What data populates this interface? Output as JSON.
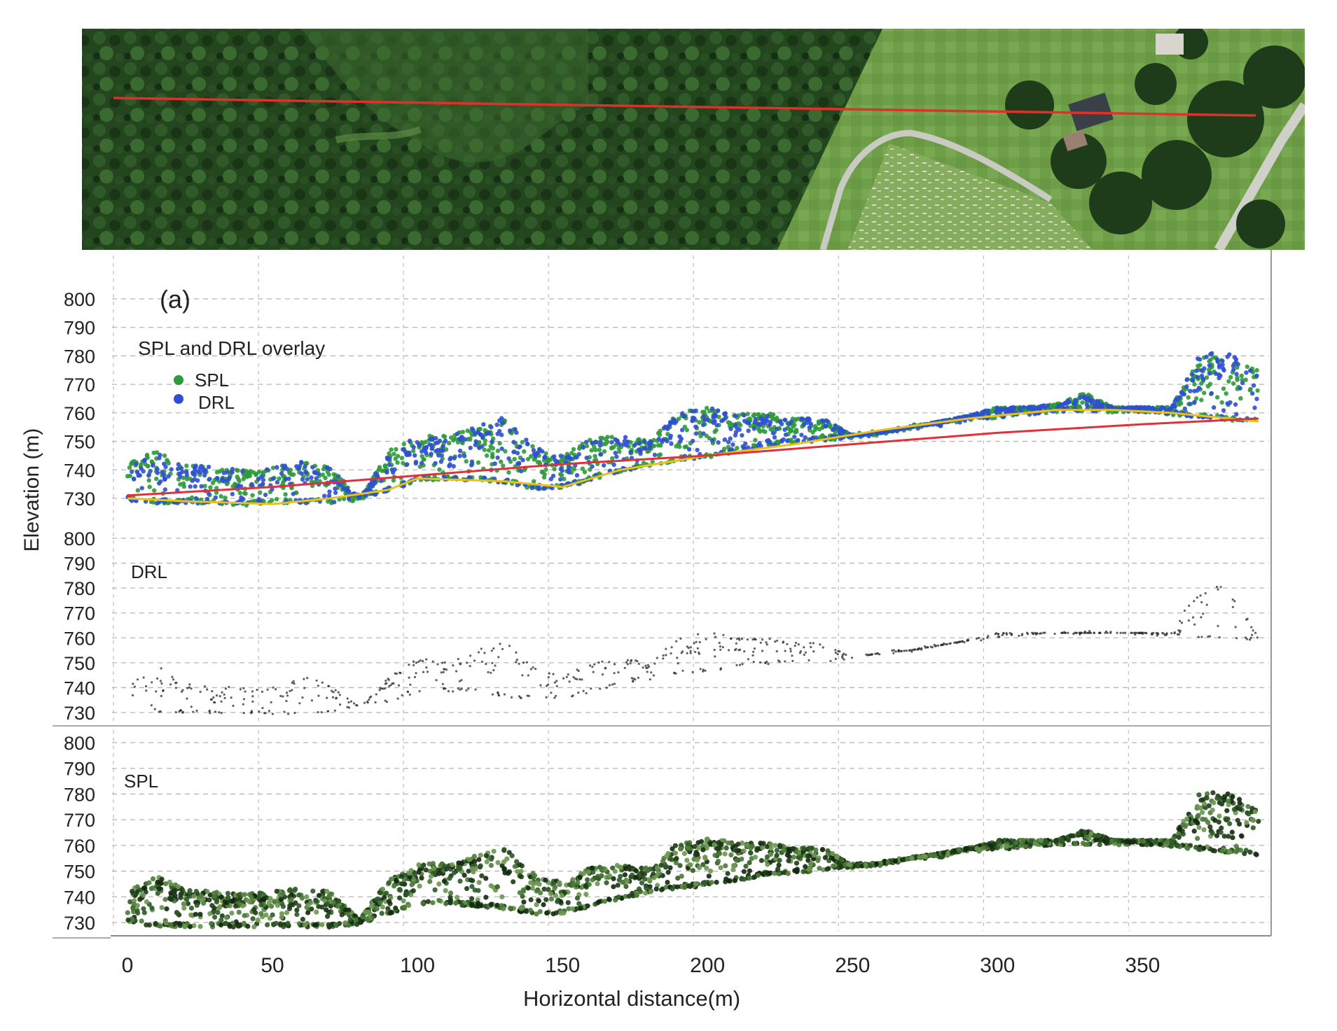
{
  "chart_data": [
    {
      "type": "scatter",
      "panel_letter": "(a)",
      "panel_title": "SPL and DRL overlay",
      "ylabel": "Elevation (m)",
      "xlim": [
        0,
        390
      ],
      "ylim": [
        725,
        805
      ],
      "y_ticks": [
        800,
        790,
        780,
        770,
        760,
        750,
        740,
        730
      ],
      "grid": true,
      "legend": {
        "position": "top-left",
        "entries": [
          {
            "name": "SPL",
            "color": "#2e9a3a"
          },
          {
            "name": "DRL",
            "color": "#2f4fd0"
          }
        ]
      },
      "series": [
        {
          "name": "SPL",
          "color": "#2e9a3a",
          "x": [
            0,
            10,
            20,
            30,
            40,
            50,
            60,
            70,
            80,
            90,
            100,
            110,
            120,
            130,
            140,
            150,
            160,
            170,
            180,
            190,
            200,
            210,
            220,
            230,
            240,
            250,
            260,
            270,
            280,
            290,
            300,
            310,
            320,
            330,
            340,
            350,
            360,
            370,
            380,
            390
          ],
          "canopy_top": [
            742,
            747,
            742,
            741,
            740,
            741,
            743,
            741,
            729,
            747,
            752,
            752,
            755,
            758,
            748,
            745,
            751,
            752,
            750,
            760,
            762,
            760,
            760,
            758,
            758,
            752,
            753,
            755,
            757,
            759,
            762,
            762,
            763,
            767,
            762,
            762,
            762,
            780,
            780,
            775
          ],
          "ground": [
            730,
            729,
            729,
            729,
            728,
            729,
            729,
            729,
            730,
            733,
            737,
            737,
            737,
            736,
            734,
            734,
            737,
            740,
            742,
            744,
            745,
            747,
            749,
            750,
            751,
            752,
            753,
            755,
            756,
            758,
            759,
            760,
            761,
            761,
            761,
            761,
            760,
            759,
            758,
            757
          ]
        },
        {
          "name": "DRL",
          "color": "#2f4fd0",
          "x": [
            0,
            10,
            20,
            30,
            40,
            50,
            60,
            70,
            80,
            90,
            100,
            110,
            120,
            130,
            140,
            150,
            160,
            170,
            180,
            190,
            200,
            210,
            220,
            230,
            240,
            250,
            260,
            270,
            280,
            290,
            300,
            310,
            320,
            330,
            340,
            350,
            360,
            370,
            380,
            390
          ],
          "canopy_top": [
            741,
            746,
            742,
            741,
            740,
            741,
            743,
            741,
            730,
            746,
            752,
            752,
            755,
            759,
            748,
            745,
            751,
            752,
            750,
            760,
            762,
            760,
            760,
            758,
            758,
            752,
            753,
            755,
            757,
            759,
            762,
            762,
            763,
            766,
            762,
            762,
            762,
            781,
            781,
            774
          ],
          "ground": [
            730,
            729,
            729,
            729,
            729,
            729,
            729,
            729,
            731,
            733,
            737,
            737,
            737,
            736,
            734,
            734,
            737,
            740,
            742,
            744,
            745,
            747,
            749,
            750,
            751,
            752,
            753,
            755,
            756,
            758,
            759,
            760,
            761,
            761,
            761,
            761,
            760,
            759,
            758,
            757
          ]
        },
        {
          "name": "terrain line (yellow)",
          "color": "#e8c020",
          "x": [
            0,
            20,
            50,
            70,
            90,
            100,
            130,
            150,
            170,
            200,
            230,
            260,
            290,
            320,
            340,
            360,
            390
          ],
          "y": [
            730,
            729,
            728,
            730,
            733,
            737,
            736,
            734,
            740,
            745,
            749,
            754,
            758,
            761,
            761,
            760,
            757
          ]
        },
        {
          "name": "terrain line (red)",
          "color": "#e0303a",
          "x": [
            0,
            50,
            100,
            150,
            200,
            250,
            300,
            350,
            390
          ],
          "y": [
            731,
            734,
            738,
            742,
            745,
            749,
            753,
            756,
            758
          ]
        }
      ]
    },
    {
      "type": "scatter",
      "panel_title": "DRL",
      "ylabel": "Elevation (m)",
      "xlim": [
        0,
        390
      ],
      "ylim": [
        725,
        805
      ],
      "y_ticks": [
        800,
        790,
        780,
        770,
        760,
        750,
        740,
        730
      ],
      "grid": true,
      "series": [
        {
          "name": "DRL",
          "color": "#2b2b2b",
          "x": [
            0,
            10,
            20,
            30,
            40,
            50,
            60,
            70,
            80,
            90,
            100,
            110,
            120,
            130,
            140,
            150,
            160,
            170,
            180,
            190,
            200,
            210,
            220,
            230,
            240,
            250,
            260,
            270,
            280,
            290,
            300,
            310,
            320,
            330,
            340,
            350,
            360,
            370,
            380,
            390
          ],
          "canopy_top": [
            741,
            749,
            742,
            741,
            740,
            741,
            745,
            741,
            732,
            744,
            752,
            750,
            755,
            759,
            748,
            745,
            750,
            752,
            750,
            760,
            763,
            760,
            760,
            758,
            758,
            752,
            753,
            755,
            757,
            759,
            762,
            762,
            762,
            762,
            762,
            762,
            762,
            782,
            780,
            760
          ],
          "ground": [
            738,
            731,
            730,
            730,
            730,
            730,
            730,
            731,
            733,
            735,
            739,
            739,
            739,
            737,
            736,
            736,
            739,
            742,
            744,
            746,
            747,
            749,
            750,
            751,
            751,
            752,
            754,
            755,
            757,
            759,
            760,
            761,
            762,
            762,
            762,
            762,
            761,
            761,
            760,
            760
          ]
        }
      ]
    },
    {
      "type": "scatter",
      "panel_title": "SPL",
      "xlabel": "Horizontal distance(m)",
      "ylabel": "Elevation (m)",
      "xlim": [
        0,
        390
      ],
      "ylim": [
        725,
        805
      ],
      "x_ticks": [
        0,
        50,
        100,
        150,
        200,
        250,
        300,
        350
      ],
      "y_ticks": [
        800,
        790,
        780,
        770,
        760,
        750,
        740,
        730
      ],
      "grid": true,
      "series": [
        {
          "name": "SPL",
          "color": "#2e5a26",
          "x": [
            0,
            10,
            20,
            30,
            40,
            50,
            60,
            70,
            80,
            90,
            100,
            110,
            120,
            130,
            140,
            150,
            160,
            170,
            180,
            190,
            200,
            210,
            220,
            230,
            240,
            250,
            260,
            270,
            280,
            290,
            300,
            310,
            320,
            330,
            340,
            350,
            360,
            370,
            380,
            390
          ],
          "canopy_top": [
            742,
            748,
            743,
            742,
            741,
            742,
            744,
            742,
            731,
            747,
            753,
            753,
            756,
            759,
            749,
            746,
            752,
            753,
            751,
            761,
            763,
            761,
            761,
            759,
            759,
            752,
            753,
            755,
            757,
            759,
            762,
            762,
            762,
            766,
            762,
            762,
            762,
            781,
            780,
            774
          ],
          "ground": [
            731,
            729,
            729,
            729,
            729,
            729,
            729,
            729,
            730,
            734,
            738,
            738,
            737,
            736,
            734,
            734,
            737,
            740,
            742,
            744,
            745,
            747,
            749,
            750,
            751,
            752,
            753,
            755,
            756,
            758,
            759,
            760,
            761,
            761,
            761,
            761,
            760,
            759,
            758,
            757
          ]
        }
      ]
    }
  ],
  "aerial_image": {
    "colors": {
      "forest_dark": "#1f3d1a",
      "forest_mid": "#2f5a28",
      "grass": "#7aa650",
      "road": "#c8c8c0",
      "profile_line": "#e0302a"
    }
  }
}
